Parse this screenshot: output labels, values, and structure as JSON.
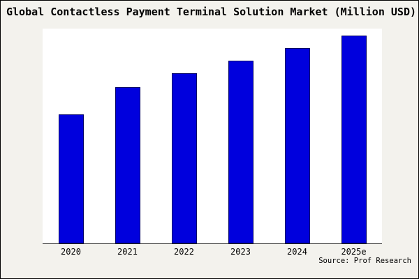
{
  "title": "Global Contactless Payment Terminal Solution Market (Million USD)",
  "source": "Source: Prof Research",
  "colors": {
    "bar": "#0000dd",
    "bar_border": "#000066",
    "background": "#f3f2ed",
    "plot_background": "#ffffff",
    "axis": "#222222"
  },
  "chart_data": {
    "type": "bar",
    "categories": [
      "2020",
      "2021",
      "2022",
      "2023",
      "2024",
      "2025e"
    ],
    "values": [
      62,
      75,
      82,
      88,
      94,
      100
    ],
    "title": "Global Contactless Payment Terminal Solution Market (Million USD)",
    "xlabel": "",
    "ylabel": "",
    "ylim": [
      0,
      100
    ],
    "units": "relative (no y-axis shown; values estimated from bar heights, max = 100)",
    "grid": false,
    "legend": false,
    "y_axis_labels_visible": false
  }
}
